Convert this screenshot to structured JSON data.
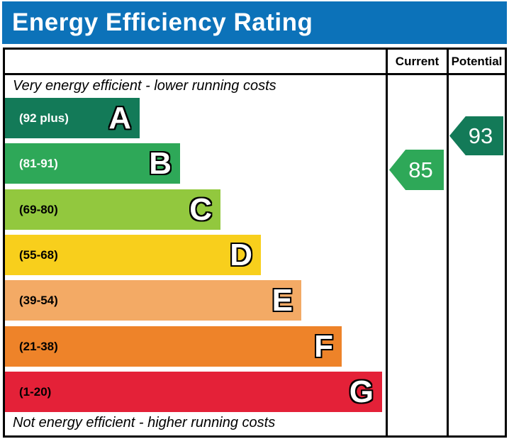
{
  "title": "Energy Efficiency Rating",
  "columns": {
    "current": "Current",
    "potential": "Potential"
  },
  "notes": {
    "top": "Very energy efficient - lower running costs",
    "bottom": "Not energy efficient - higher running costs"
  },
  "bands": [
    {
      "letter": "A",
      "range": "(92 plus)",
      "color": "#137a58",
      "text_color": "#ffffff"
    },
    {
      "letter": "B",
      "range": "(81-91)",
      "color": "#2ea858",
      "text_color": "#ffffff"
    },
    {
      "letter": "C",
      "range": "(69-80)",
      "color": "#92c83e",
      "text_color": "#000000"
    },
    {
      "letter": "D",
      "range": "(55-68)",
      "color": "#f8cf1c",
      "text_color": "#000000"
    },
    {
      "letter": "E",
      "range": "(39-54)",
      "color": "#f3aa65",
      "text_color": "#000000"
    },
    {
      "letter": "F",
      "range": "(21-38)",
      "color": "#ee8329",
      "text_color": "#000000"
    },
    {
      "letter": "G",
      "range": "(1-20)",
      "color": "#e42138",
      "text_color": "#000000"
    }
  ],
  "current": {
    "value": "85",
    "band": "B",
    "color": "#2ea858"
  },
  "potential": {
    "value": "93",
    "band": "A",
    "color": "#137a58"
  },
  "colors": {
    "title_bar": "#0c72b9",
    "border": "#000000",
    "background": "#ffffff"
  },
  "chart_data": {
    "type": "bar",
    "title": "Energy Efficiency Rating",
    "categories": [
      "A",
      "B",
      "C",
      "D",
      "E",
      "F",
      "G"
    ],
    "band_ranges": [
      "92 plus",
      "81-91",
      "69-80",
      "55-68",
      "39-54",
      "21-38",
      "1-20"
    ],
    "band_colors": [
      "#137a58",
      "#2ea858",
      "#92c83e",
      "#f8cf1c",
      "#f3aa65",
      "#ee8329",
      "#e42138"
    ],
    "series": [
      {
        "name": "Current",
        "value": 85,
        "band": "B"
      },
      {
        "name": "Potential",
        "value": 93,
        "band": "A"
      }
    ],
    "value_range": [
      1,
      100
    ],
    "annotations": [
      "Very energy efficient - lower running costs",
      "Not energy efficient - higher running costs"
    ],
    "legend_position": "none",
    "grid": false
  }
}
